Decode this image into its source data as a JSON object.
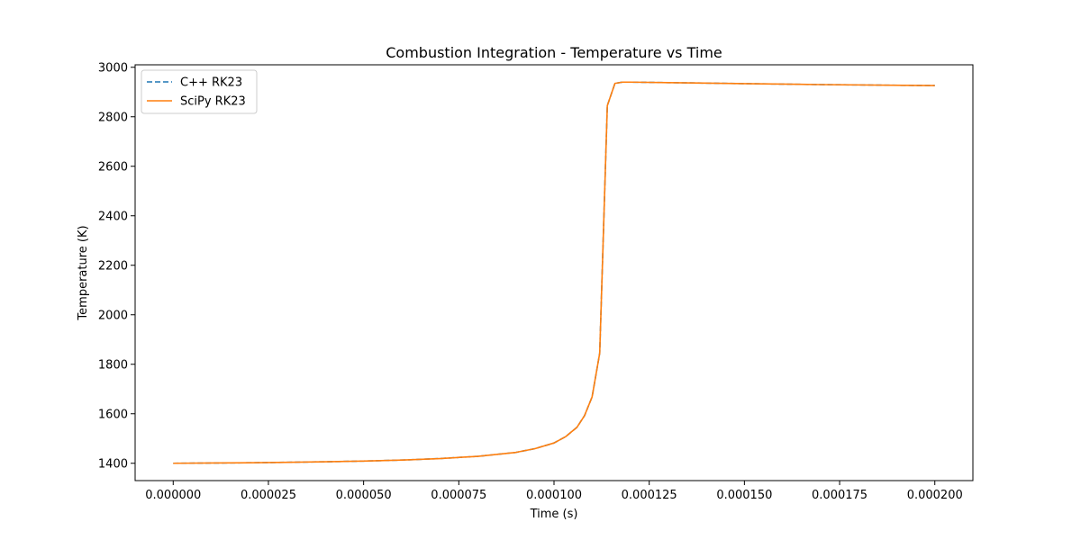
{
  "chart_data": {
    "type": "line",
    "title": "Combustion Integration - Temperature vs Time",
    "xlabel": "Time (s)",
    "ylabel": "Temperature (K)",
    "xlim": [
      -1e-05,
      0.00021
    ],
    "ylim": [
      1330,
      3010
    ],
    "x_ticks": [
      0,
      2.5e-05,
      5e-05,
      7.5e-05,
      0.0001,
      0.000125,
      0.00015,
      0.000175,
      0.0002
    ],
    "x_tick_labels": [
      "0.000000",
      "0.000025",
      "0.000050",
      "0.000075",
      "0.000100",
      "0.000125",
      "0.000150",
      "0.000175",
      "0.000200"
    ],
    "y_ticks": [
      1400,
      1600,
      1800,
      2000,
      2200,
      2400,
      2600,
      2800,
      3000
    ],
    "y_tick_labels": [
      "1400",
      "1600",
      "1800",
      "2000",
      "2200",
      "2400",
      "2600",
      "2800",
      "3000"
    ],
    "grid": false,
    "legend": "top-left",
    "series": [
      {
        "name": "C++ RK23",
        "color": "#1f77b4",
        "style": "dashed",
        "x": [
          0,
          1e-05,
          2e-05,
          3e-05,
          4e-05,
          5e-05,
          6e-05,
          7e-05,
          8e-05,
          9e-05,
          9.5e-05,
          0.0001,
          0.000103,
          0.000106,
          0.000108,
          0.00011,
          0.000112,
          0.000114,
          0.000116,
          0.000118,
          0.00012,
          0.00013,
          0.00015,
          0.00017,
          0.0002
        ],
        "y": [
          1400,
          1401,
          1402,
          1404,
          1406,
          1409,
          1413,
          1419,
          1428,
          1444,
          1459,
          1482,
          1507,
          1545,
          1592,
          1668,
          1845,
          2845,
          2935,
          2940,
          2940,
          2938,
          2934,
          2930,
          2926
        ]
      },
      {
        "name": "SciPy RK23",
        "color": "#ff7f0e",
        "style": "solid",
        "x": [
          0,
          1e-05,
          2e-05,
          3e-05,
          4e-05,
          5e-05,
          6e-05,
          7e-05,
          8e-05,
          9e-05,
          9.5e-05,
          0.0001,
          0.000103,
          0.000106,
          0.000108,
          0.00011,
          0.000112,
          0.000114,
          0.000116,
          0.000118,
          0.00012,
          0.00013,
          0.00015,
          0.00017,
          0.0002
        ],
        "y": [
          1400,
          1401,
          1402,
          1404,
          1406,
          1409,
          1413,
          1419,
          1428,
          1444,
          1459,
          1482,
          1507,
          1545,
          1592,
          1668,
          1845,
          2845,
          2935,
          2940,
          2940,
          2938,
          2934,
          2930,
          2926
        ]
      }
    ]
  }
}
